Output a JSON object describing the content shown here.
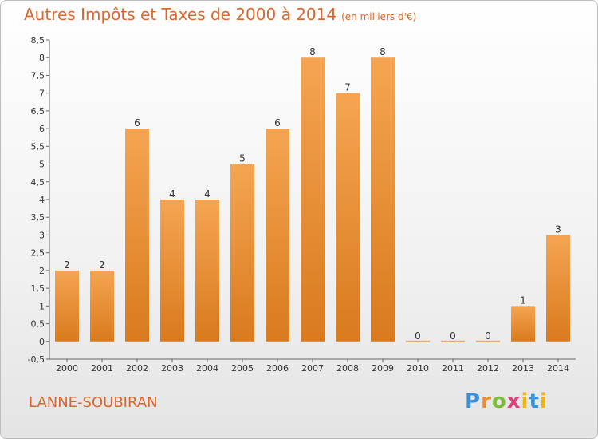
{
  "header": {
    "title": "Autres Impôts et Taxes de 2000 à 2014",
    "subtitle": "(en milliers d'€)"
  },
  "footer": {
    "commune": "LANNE-SOUBIRAN",
    "logo": [
      "P",
      "r",
      "o",
      "x",
      "i",
      "t",
      "i"
    ]
  },
  "colors": {
    "title": "#e0652a",
    "bar_top": "#f5a552",
    "bar_bottom": "#d97a1e",
    "zero_bar": "#f0a865"
  },
  "chart_data": {
    "type": "bar",
    "title": "Autres Impôts et Taxes de 2000 à 2014",
    "subtitle": "(en milliers d'€)",
    "categories": [
      "2000",
      "2001",
      "2002",
      "2003",
      "2004",
      "2005",
      "2006",
      "2007",
      "2008",
      "2009",
      "2010",
      "2011",
      "2012",
      "2013",
      "2014"
    ],
    "values": [
      2,
      2,
      6,
      4,
      4,
      5,
      6,
      8,
      7,
      8,
      0,
      0,
      0,
      1,
      3
    ],
    "data_labels": [
      "2",
      "2",
      "6",
      "4",
      "4",
      "5",
      "6",
      "8",
      "7",
      "8",
      "0",
      "0",
      "0",
      "1",
      "3"
    ],
    "ylim": [
      -0.5,
      8.5
    ],
    "yticks": [
      "-0,5",
      "0",
      "0,5",
      "1",
      "1,5",
      "2",
      "2,5",
      "3",
      "3,5",
      "4",
      "4,5",
      "5",
      "5,5",
      "6",
      "6,5",
      "7",
      "7,5",
      "8",
      "8,5"
    ],
    "grid": false,
    "xlabel": "",
    "ylabel": ""
  }
}
